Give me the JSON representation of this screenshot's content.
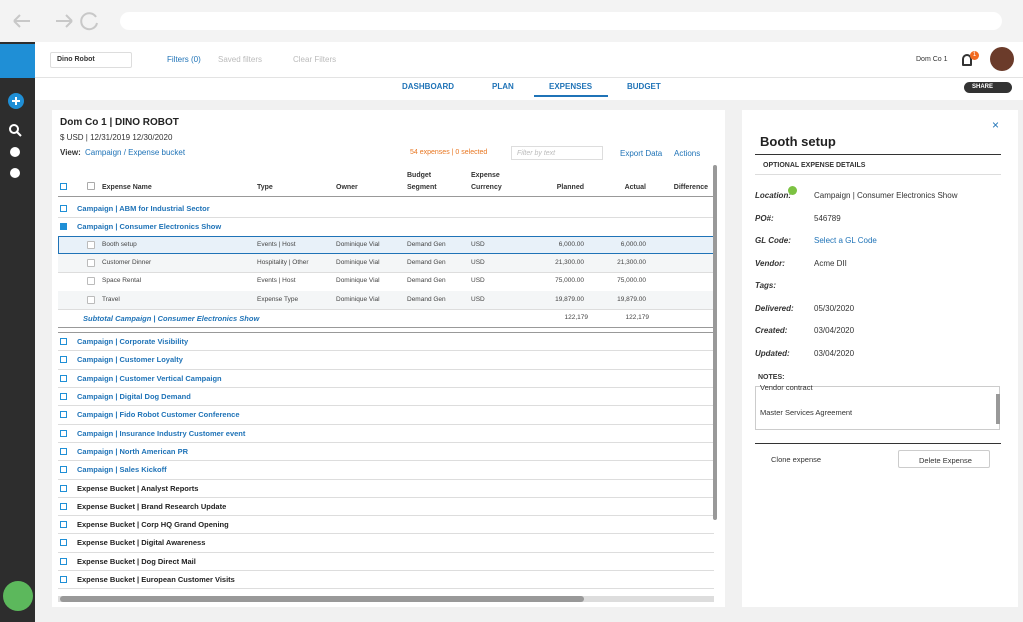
{
  "toolbar": {
    "org": "Dino Robot",
    "filters": "Filters (0)",
    "saved_filters": "Saved filters",
    "clear_filters": "Clear Filters",
    "user": "Dom Co 1",
    "notifications": "1"
  },
  "tabs": {
    "items": [
      "DASHBOARD",
      "PLAN",
      "EXPENSES",
      "BUDGET"
    ],
    "active": 2,
    "share": "SHARE"
  },
  "table": {
    "title": "Dom Co 1 | DINO ROBOT",
    "subtitle": "$ USD | 12/31/2019 12/30/2020",
    "view_label": "View:",
    "view": "Campaign / Expense bucket",
    "count": "54 expenses | 0 selected",
    "filter_placeholder": "Filter by text",
    "export": "Export Data",
    "actions": "Actions",
    "columns": [
      "Expense Name",
      "Type",
      "Owner",
      "Budget Segment",
      "Expense Currency",
      "Planned",
      "Actual",
      "Difference"
    ],
    "rows": [
      {
        "kind": "campaign",
        "name": "Campaign | ABM for Industrial Sector"
      },
      {
        "kind": "campaign",
        "name": "Campaign | Consumer Electronics Show",
        "expanded": true
      },
      {
        "kind": "expense",
        "selected": true,
        "cells": [
          "Booth setup",
          "Events | Host",
          "Dominique Vial",
          "Demand Gen",
          "USD",
          "6,000.00",
          "6,000.00"
        ]
      },
      {
        "kind": "expense",
        "cells": [
          "Customer Dinner",
          "Hospitality | Other",
          "Dominique Vial",
          "Demand Gen",
          "USD",
          "21,300.00",
          "21,300.00"
        ]
      },
      {
        "kind": "expense",
        "cells": [
          "Space Rental",
          "Events | Host",
          "Dominique Vial",
          "Demand Gen",
          "USD",
          "75,000.00",
          "75,000.00"
        ]
      },
      {
        "kind": "expense",
        "cells": [
          "Travel",
          "Expense Type",
          "Dominique Vial",
          "Demand Gen",
          "USD",
          "19,879.00",
          "19,879.00"
        ]
      },
      {
        "kind": "subtotal",
        "name": "Subtotal Campaign | Consumer Electronics Show",
        "planned": "122,179",
        "actual": "122,179"
      },
      {
        "kind": "campaign",
        "name": "Campaign | Corporate Visibility"
      },
      {
        "kind": "campaign",
        "name": "Campaign | Customer Loyalty"
      },
      {
        "kind": "campaign",
        "name": "Campaign | Customer Vertical Campaign"
      },
      {
        "kind": "campaign",
        "name": "Campaign | Digital Dog Demand"
      },
      {
        "kind": "campaign",
        "name": "Campaign | Fido Robot Customer Conference"
      },
      {
        "kind": "campaign",
        "name": "Campaign | Insurance Industry Customer event"
      },
      {
        "kind": "campaign",
        "name": "Campaign | North American PR"
      },
      {
        "kind": "campaign",
        "name": "Campaign | Sales Kickoff"
      },
      {
        "kind": "bucket",
        "name": "Expense Bucket | Analyst Reports"
      },
      {
        "kind": "bucket",
        "name": "Expense Bucket | Brand Research Update"
      },
      {
        "kind": "bucket",
        "name": "Expense Bucket | Corp HQ Grand Opening"
      },
      {
        "kind": "bucket",
        "name": "Expense Bucket | Digital Awareness"
      },
      {
        "kind": "bucket",
        "name": "Expense Bucket | Dog Direct Mail"
      },
      {
        "kind": "bucket",
        "name": "Expense Bucket | European Customer Visits"
      }
    ]
  },
  "detail": {
    "title": "Booth setup",
    "section": "OPTIONAL EXPENSE DETAILS",
    "fields": [
      {
        "label": "Location:",
        "value": "Campaign | Consumer Electronics Show"
      },
      {
        "label": "PO#:",
        "value": "546789"
      },
      {
        "label": "GL Code:",
        "value": "Select a GL Code"
      },
      {
        "label": "Vendor:",
        "value": "Acme DII"
      },
      {
        "label": "Tags:"
      },
      {
        "label": "Delivered:",
        "value": "05/30/2020"
      },
      {
        "label": "Created:",
        "value": "03/04/2020"
      },
      {
        "label": "Updated:",
        "value": "03/04/2020"
      }
    ],
    "notes_label": "NOTES:",
    "notes": [
      "Vendor contract",
      "Master Services Agreement"
    ],
    "clone": "Clone expense",
    "delete": "Delete Expense"
  }
}
